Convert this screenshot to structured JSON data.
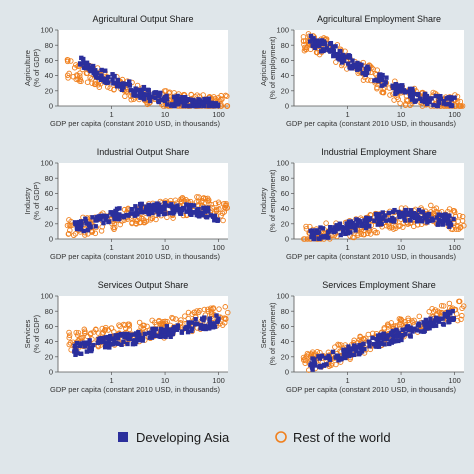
{
  "colors": {
    "developing_asia": "#2b2f9c",
    "rest_of_world": "#f0801e",
    "background": "#dfe6ea",
    "plot_bg": "#ffffff"
  },
  "legend": {
    "placement": "bottom-center",
    "items": [
      {
        "label": "Developing Asia",
        "marker": "filled-square",
        "color": "#2b2f9c"
      },
      {
        "label": "Rest of the world",
        "marker": "hollow-circle",
        "color": "#f0801e"
      }
    ]
  },
  "chart_data": [
    {
      "type": "scatter",
      "title": "Agricultural Output Share",
      "xlabel": "GDP per capita (constant 2010 USD, in thousands)",
      "ylabel": [
        "Agriculture",
        "(% of GDP)"
      ],
      "x_scale": "log",
      "xlim": [
        0.1,
        150
      ],
      "ylim": [
        0,
        100
      ],
      "x_ticks": [
        {
          "value": 1,
          "label": "1"
        },
        {
          "value": 10,
          "label": "10"
        },
        {
          "value": 100,
          "label": "100"
        }
      ],
      "y_ticks": [
        {
          "value": 0,
          "label": "0"
        },
        {
          "value": 20,
          "label": "20"
        },
        {
          "value": 40,
          "label": "40"
        },
        {
          "value": 60,
          "label": "60"
        },
        {
          "value": 80,
          "label": "80"
        },
        {
          "value": 100,
          "label": "100"
        }
      ],
      "grid": false,
      "series": [
        {
          "name": "Developing Asia",
          "trend": [
            [
              0.25,
              60
            ],
            [
              0.5,
              45
            ],
            [
              1,
              35
            ],
            [
              3,
              20
            ],
            [
              10,
              8
            ],
            [
              30,
              3
            ],
            [
              100,
              1
            ]
          ]
        },
        {
          "name": "Rest of the world",
          "trend": [
            [
              0.15,
              50
            ],
            [
              0.4,
              42
            ],
            [
              1,
              30
            ],
            [
              3,
              18
            ],
            [
              10,
              8
            ],
            [
              40,
              2
            ],
            [
              150,
              1
            ]
          ]
        }
      ]
    },
    {
      "type": "scatter",
      "title": "Agricultural Employment Share",
      "xlabel": "GDP per capita (constant 2010 USD, in thousands)",
      "ylabel": [
        "Agriculture",
        "(% of employment)"
      ],
      "x_scale": "log",
      "xlim": [
        0.1,
        150
      ],
      "ylim": [
        0,
        100
      ],
      "x_ticks": [
        {
          "value": 1,
          "label": "1"
        },
        {
          "value": 10,
          "label": "10"
        },
        {
          "value": 100,
          "label": "100"
        }
      ],
      "y_ticks": [
        {
          "value": 0,
          "label": "0"
        },
        {
          "value": 20,
          "label": "20"
        },
        {
          "value": 40,
          "label": "40"
        },
        {
          "value": 60,
          "label": "60"
        },
        {
          "value": 80,
          "label": "80"
        },
        {
          "value": 100,
          "label": "100"
        }
      ],
      "grid": false,
      "series": [
        {
          "name": "Developing Asia",
          "trend": [
            [
              0.2,
              85
            ],
            [
              0.5,
              75
            ],
            [
              1,
              60
            ],
            [
              3,
              40
            ],
            [
              10,
              20
            ],
            [
              30,
              8
            ],
            [
              100,
              3
            ]
          ]
        },
        {
          "name": "Rest of the world",
          "trend": [
            [
              0.15,
              85
            ],
            [
              0.4,
              78
            ],
            [
              1,
              60
            ],
            [
              3,
              38
            ],
            [
              10,
              15
            ],
            [
              40,
              5
            ],
            [
              150,
              1
            ]
          ]
        }
      ]
    },
    {
      "type": "scatter",
      "title": "Industrial Output Share",
      "xlabel": "GDP per capita (constant 2010 USD, in thousands)",
      "ylabel": [
        "Industry",
        "(% of GDP)"
      ],
      "x_scale": "log",
      "xlim": [
        0.1,
        150
      ],
      "ylim": [
        0,
        100
      ],
      "x_ticks": [
        {
          "value": 1,
          "label": "1"
        },
        {
          "value": 10,
          "label": "10"
        },
        {
          "value": 100,
          "label": "100"
        }
      ],
      "y_ticks": [
        {
          "value": 0,
          "label": "0"
        },
        {
          "value": 20,
          "label": "20"
        },
        {
          "value": 40,
          "label": "40"
        },
        {
          "value": 60,
          "label": "60"
        },
        {
          "value": 80,
          "label": "80"
        },
        {
          "value": 100,
          "label": "100"
        }
      ],
      "grid": false,
      "series": [
        {
          "name": "Developing Asia",
          "trend": [
            [
              0.2,
              15
            ],
            [
              0.5,
              22
            ],
            [
              1,
              30
            ],
            [
              3,
              38
            ],
            [
              10,
              40
            ],
            [
              30,
              38
            ],
            [
              100,
              30
            ]
          ]
        },
        {
          "name": "Rest of the world",
          "trend": [
            [
              0.15,
              15
            ],
            [
              0.4,
              18
            ],
            [
              1,
              25
            ],
            [
              3,
              32
            ],
            [
              10,
              38
            ],
            [
              40,
              45
            ],
            [
              150,
              35
            ]
          ]
        }
      ]
    },
    {
      "type": "scatter",
      "title": "Industrial Employment Share",
      "xlabel": "GDP per capita (constant 2010 USD, in thousands)",
      "ylabel": [
        "Industry",
        "(% of employment)"
      ],
      "x_scale": "log",
      "xlim": [
        0.1,
        150
      ],
      "ylim": [
        0,
        100
      ],
      "x_ticks": [
        {
          "value": 1,
          "label": "1"
        },
        {
          "value": 10,
          "label": "10"
        },
        {
          "value": 100,
          "label": "100"
        }
      ],
      "y_ticks": [
        {
          "value": 0,
          "label": "0"
        },
        {
          "value": 20,
          "label": "20"
        },
        {
          "value": 40,
          "label": "40"
        },
        {
          "value": 60,
          "label": "60"
        },
        {
          "value": 80,
          "label": "80"
        },
        {
          "value": 100,
          "label": "100"
        }
      ],
      "grid": false,
      "series": [
        {
          "name": "Developing Asia",
          "trend": [
            [
              0.2,
              5
            ],
            [
              0.5,
              10
            ],
            [
              1,
              15
            ],
            [
              3,
              25
            ],
            [
              10,
              32
            ],
            [
              30,
              30
            ],
            [
              100,
              22
            ]
          ]
        },
        {
          "name": "Rest of the world",
          "trend": [
            [
              0.15,
              5
            ],
            [
              0.4,
              8
            ],
            [
              1,
              12
            ],
            [
              3,
              20
            ],
            [
              10,
              28
            ],
            [
              40,
              32
            ],
            [
              150,
              22
            ]
          ]
        }
      ]
    },
    {
      "type": "scatter",
      "title": "Services Output Share",
      "xlabel": "GDP per capita (constant 2010 USD, in thousands)",
      "ylabel": [
        "Services",
        "(% of GDP)"
      ],
      "x_scale": "log",
      "xlim": [
        0.1,
        150
      ],
      "ylim": [
        0,
        100
      ],
      "x_ticks": [
        {
          "value": 1,
          "label": "1"
        },
        {
          "value": 10,
          "label": "10"
        },
        {
          "value": 100,
          "label": "100"
        }
      ],
      "y_ticks": [
        {
          "value": 0,
          "label": "0"
        },
        {
          "value": 20,
          "label": "20"
        },
        {
          "value": 40,
          "label": "40"
        },
        {
          "value": 60,
          "label": "60"
        },
        {
          "value": 80,
          "label": "80"
        },
        {
          "value": 100,
          "label": "100"
        }
      ],
      "grid": false,
      "series": [
        {
          "name": "Developing Asia",
          "trend": [
            [
              0.2,
              30
            ],
            [
              0.5,
              35
            ],
            [
              1,
              40
            ],
            [
              3,
              45
            ],
            [
              10,
              52
            ],
            [
              30,
              60
            ],
            [
              100,
              68
            ]
          ]
        },
        {
          "name": "Rest of the world",
          "trend": [
            [
              0.15,
              40
            ],
            [
              0.4,
              45
            ],
            [
              1,
              48
            ],
            [
              3,
              52
            ],
            [
              10,
              58
            ],
            [
              40,
              68
            ],
            [
              150,
              75
            ]
          ]
        }
      ]
    },
    {
      "type": "scatter",
      "title": "Services Employment Share",
      "xlabel": "GDP per capita (constant 2010 USD, in thousands)",
      "ylabel": [
        "Services",
        "(% of employment)"
      ],
      "x_scale": "log",
      "xlim": [
        0.1,
        150
      ],
      "ylim": [
        0,
        100
      ],
      "x_ticks": [
        {
          "value": 1,
          "label": "1"
        },
        {
          "value": 10,
          "label": "10"
        },
        {
          "value": 100,
          "label": "100"
        }
      ],
      "y_ticks": [
        {
          "value": 0,
          "label": "0"
        },
        {
          "value": 20,
          "label": "20"
        },
        {
          "value": 40,
          "label": "40"
        },
        {
          "value": 60,
          "label": "60"
        },
        {
          "value": 80,
          "label": "80"
        },
        {
          "value": 100,
          "label": "100"
        }
      ],
      "grid": false,
      "series": [
        {
          "name": "Developing Asia",
          "trend": [
            [
              0.2,
              10
            ],
            [
              0.5,
              18
            ],
            [
              1,
              25
            ],
            [
              3,
              38
            ],
            [
              10,
              50
            ],
            [
              30,
              62
            ],
            [
              100,
              75
            ]
          ]
        },
        {
          "name": "Rest of the world",
          "trend": [
            [
              0.15,
              10
            ],
            [
              0.4,
              18
            ],
            [
              1,
              28
            ],
            [
              3,
              42
            ],
            [
              10,
              58
            ],
            [
              40,
              72
            ],
            [
              150,
              82
            ]
          ]
        }
      ]
    }
  ]
}
